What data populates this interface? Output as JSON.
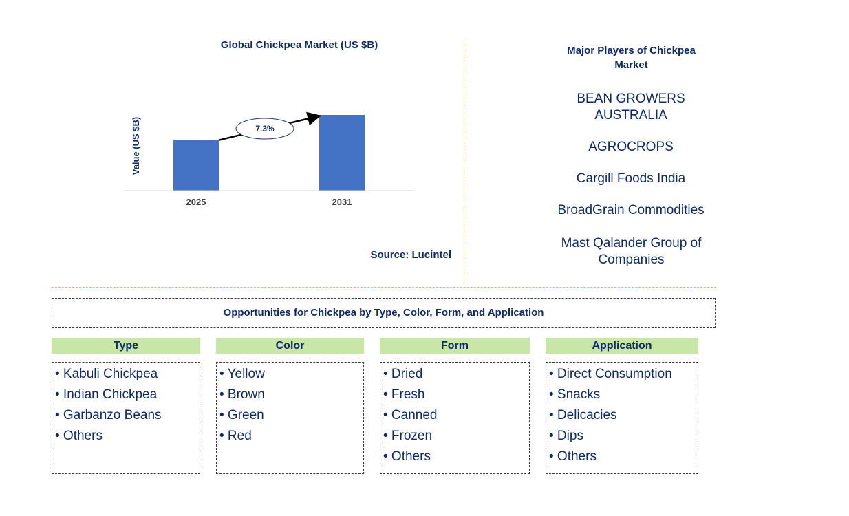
{
  "chart_data": {
    "type": "bar",
    "title": "Global Chickpea Market (US $B)",
    "ylabel": "Value (US $B)",
    "categories": [
      "2025",
      "2031"
    ],
    "values": [
      1.0,
      1.5
    ],
    "cagr_label": "7.3%",
    "colors": {
      "bar": "#4472c4",
      "text": "#0e2a6b"
    }
  },
  "source": "Source: Lucintel",
  "players": {
    "title": "Major Players of Chickpea Market",
    "items": [
      "BEAN GROWERS AUSTRALIA",
      "AGROCROPS",
      "Cargill Foods India",
      "BroadGrain Commodities",
      "Mast Qalander Group of Companies"
    ]
  },
  "opportunities": {
    "title": "Opportunities for Chickpea by Type, Color, Form, and Application",
    "categories": [
      {
        "heading": "Type",
        "items": [
          "Kabuli Chickpea",
          "Indian Chickpea",
          "Garbanzo Beans",
          "Others"
        ]
      },
      {
        "heading": "Color",
        "items": [
          "Yellow",
          "Brown",
          "Green",
          "Red"
        ]
      },
      {
        "heading": "Form",
        "items": [
          "Dried",
          "Fresh",
          "Canned",
          "Frozen",
          "Others"
        ]
      },
      {
        "heading": "Application",
        "items": [
          "Direct Consumption",
          "Snacks",
          "Delicacies",
          "Dips",
          "Others"
        ]
      }
    ]
  }
}
